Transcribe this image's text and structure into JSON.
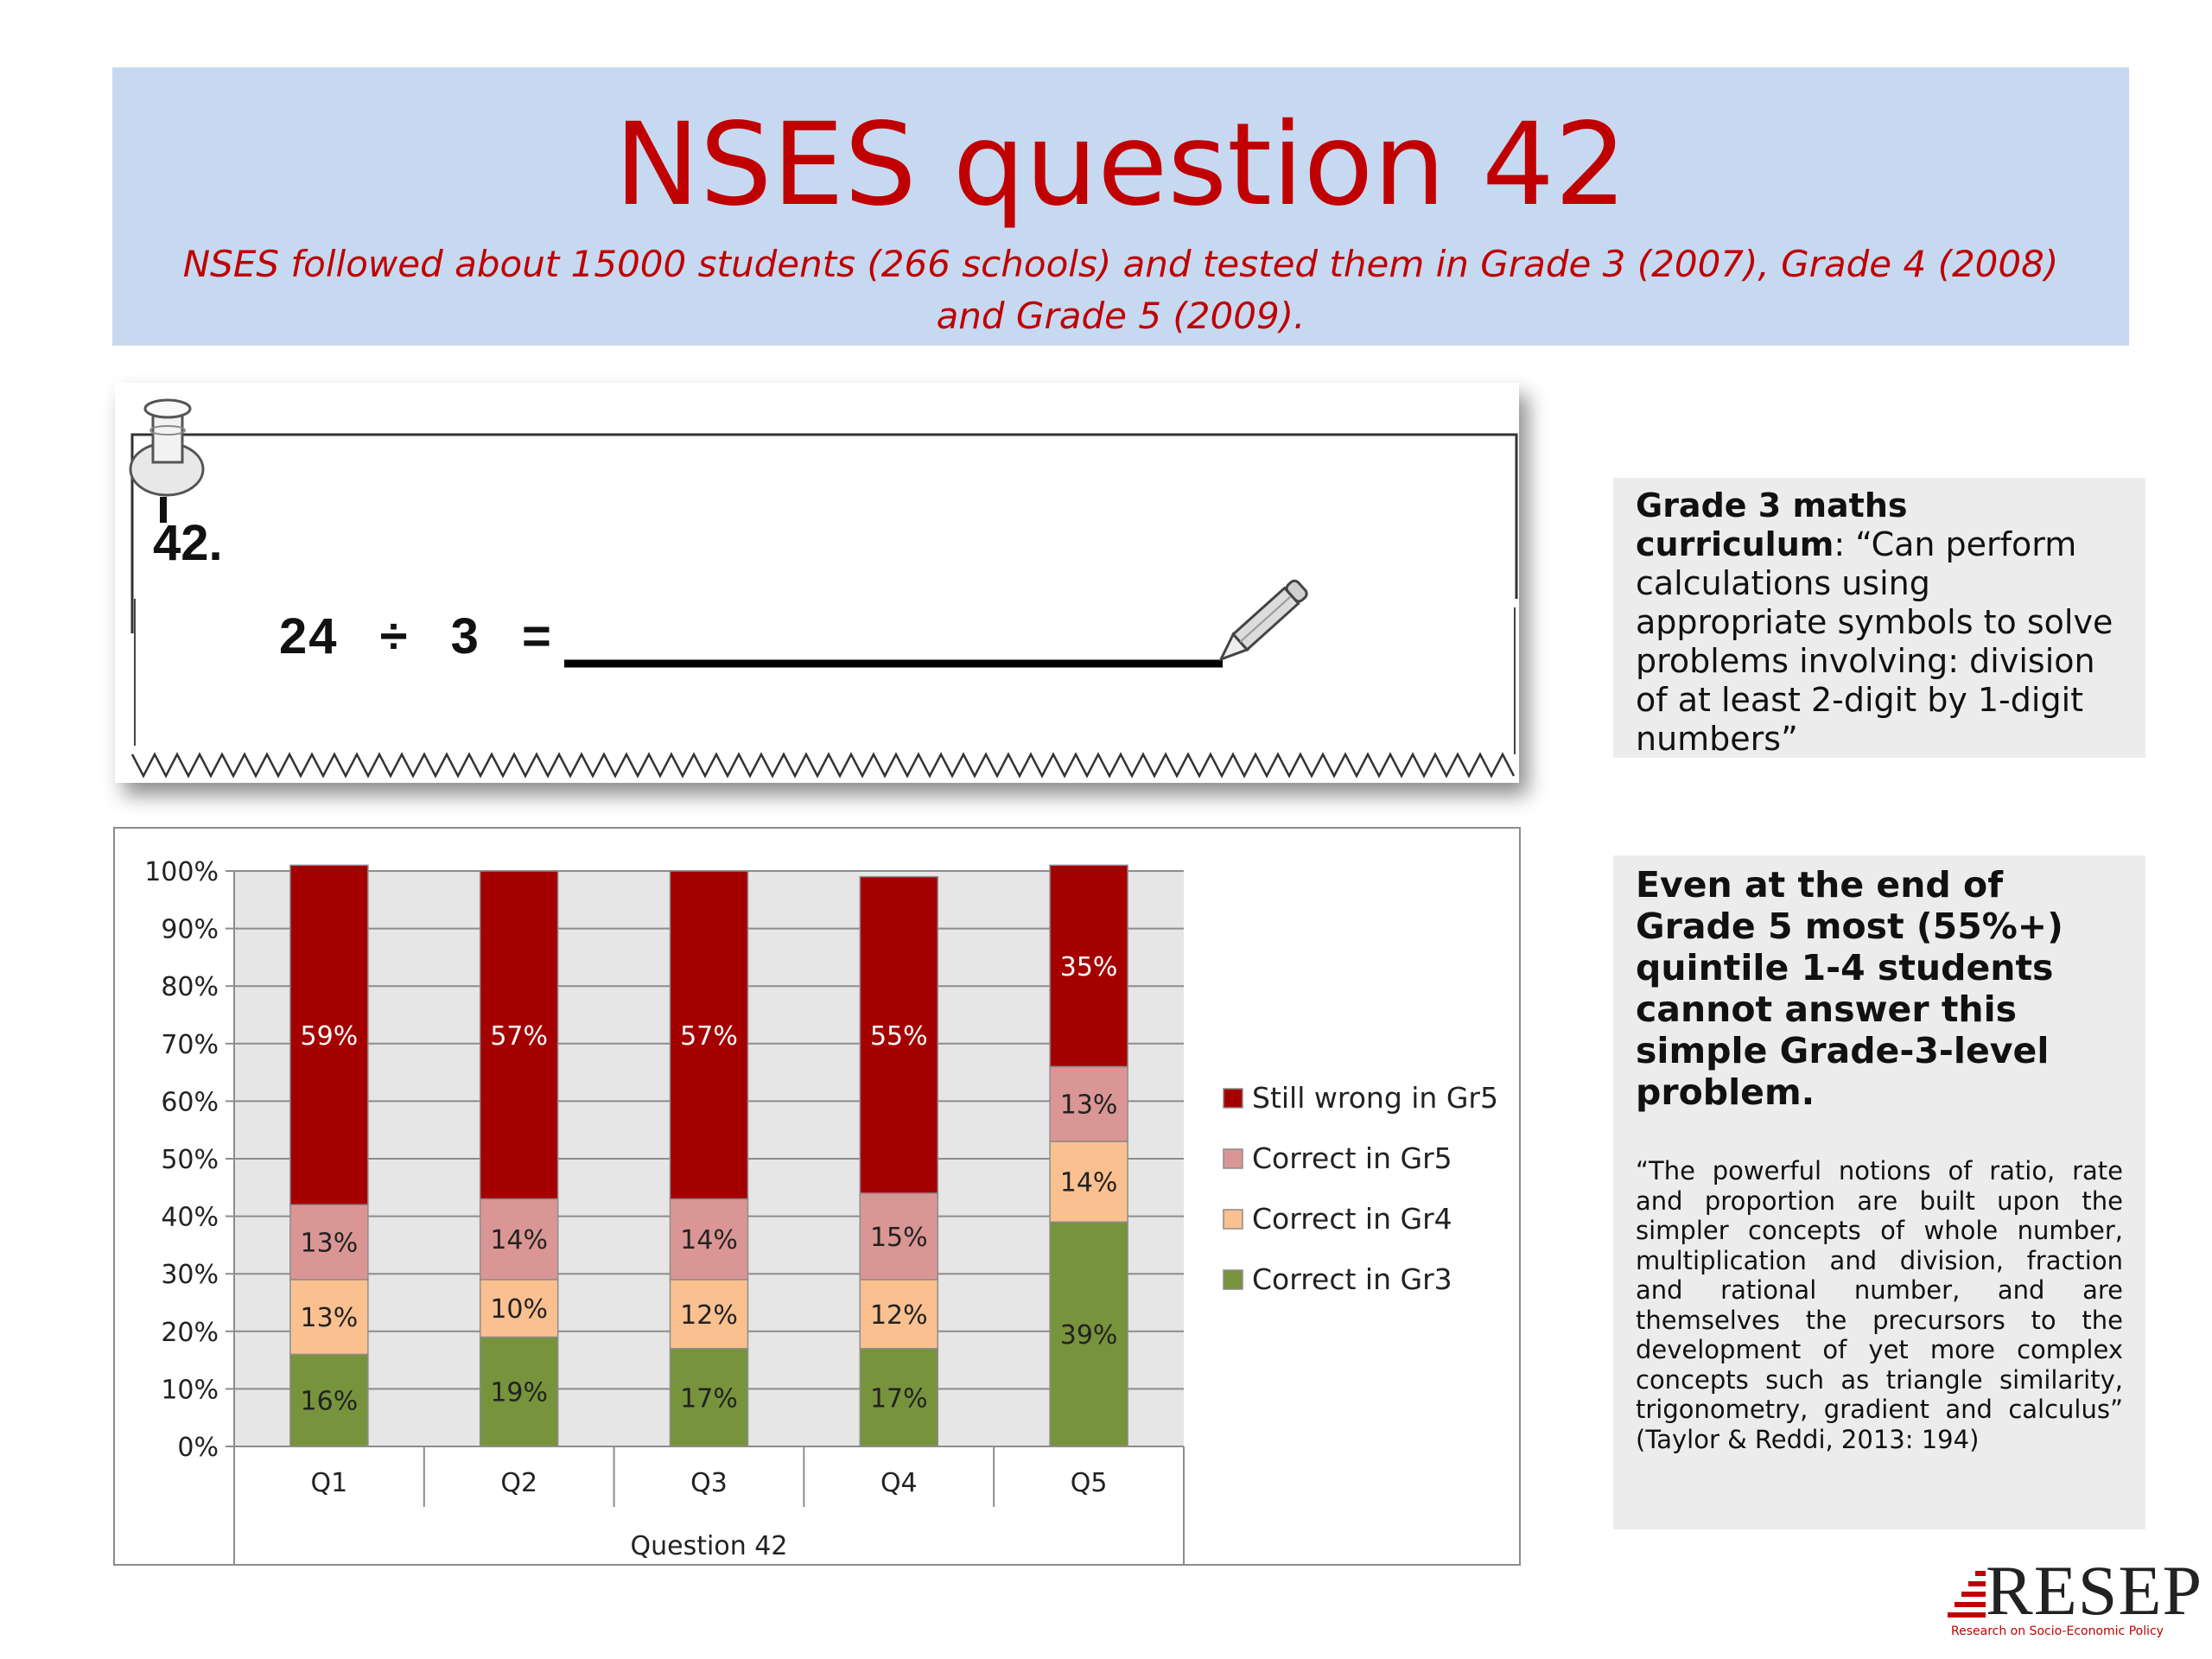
{
  "header": {
    "title": "NSES question 42",
    "subtitle": "NSES followed about 15000 students (266 schools) and tested them in Grade 3 (2007), Grade 4 (2008) and Grade 5 (2009)."
  },
  "problem": {
    "number": "42.",
    "equation": "24 ÷ 3 ="
  },
  "callout_curriculum": {
    "heading": "Grade 3 maths curriculum",
    "text": "“Can perform calculations using appropriate symbols to solve problems involving: division of at least 2-digit by 1-digit numbers”"
  },
  "callout_finding": {
    "lead": "Even at the end of Grade 5 most (55%+) quintile 1-4 students cannot answer this simple Grade-3-level problem.",
    "quote": "“The powerful notions of ratio, rate and proportion are built upon the simpler concepts of whole number, multiplication and division, fraction and rational number, and are themselves the precursors to the development of yet more complex concepts such as triangle similarity, trigonometry, gradient and calculus” (Taylor & Reddi, 2013: 194)"
  },
  "logo": {
    "text": "RESEP",
    "tagline": "Research on Socio-Economic Policy"
  },
  "colors": {
    "still_wrong_gr5": "#a50000",
    "correct_gr5": "#da9694",
    "correct_gr4": "#fac090",
    "correct_gr3": "#77933c",
    "header_bg": "#c6d9f1",
    "title_red": "#c00000"
  },
  "chart_data": {
    "type": "bar",
    "stacked": true,
    "percent": true,
    "categories": [
      "Q1",
      "Q2",
      "Q3",
      "Q4",
      "Q5"
    ],
    "xlabel": "Question 42",
    "ylabel": "",
    "ylim": [
      0,
      100
    ],
    "yticks": [
      "0%",
      "10%",
      "20%",
      "30%",
      "40%",
      "50%",
      "60%",
      "70%",
      "80%",
      "90%",
      "100%"
    ],
    "grid": true,
    "legend_position": "right",
    "series": [
      {
        "name": "Correct in Gr3",
        "values": [
          16,
          19,
          17,
          17,
          39
        ],
        "labels": [
          "16%",
          "19%",
          "17%",
          "17%",
          "39%"
        ]
      },
      {
        "name": "Correct in Gr4",
        "values": [
          13,
          10,
          12,
          12,
          14
        ],
        "labels": [
          "13%",
          "10%",
          "12%",
          "12%",
          "14%"
        ]
      },
      {
        "name": "Correct in Gr5",
        "values": [
          13,
          14,
          14,
          15,
          13
        ],
        "labels": [
          "13%",
          "14%",
          "14%",
          "15%",
          "13%"
        ]
      },
      {
        "name": "Still wrong in Gr5",
        "values": [
          59,
          57,
          57,
          55,
          35
        ],
        "labels": [
          "59%",
          "57%",
          "57%",
          "55%",
          "35%"
        ]
      }
    ],
    "legend_order": [
      "Still wrong in Gr5",
      "Correct in Gr5",
      "Correct in Gr4",
      "Correct in Gr3"
    ]
  }
}
